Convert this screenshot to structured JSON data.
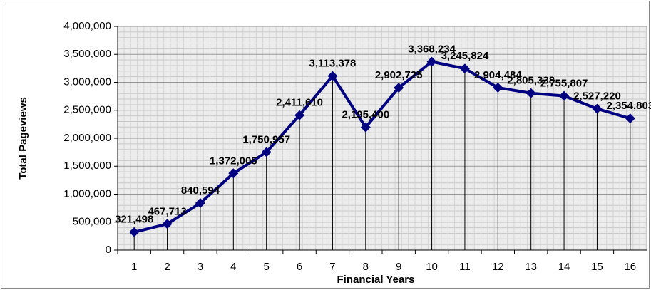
{
  "chart_data": {
    "type": "line",
    "x_label": "Financial Years",
    "y_label": "Total Pageviews",
    "categories": [
      "1",
      "2",
      "3",
      "4",
      "5",
      "6",
      "7",
      "8",
      "9",
      "10",
      "11",
      "12",
      "13",
      "14",
      "15",
      "16"
    ],
    "series": [
      {
        "name": "Total Pageviews",
        "color": "#000080",
        "values": [
          321498,
          467713,
          840594,
          1372005,
          1750957,
          2411610,
          3113378,
          2195400,
          2902725,
          3368234,
          3245824,
          2904484,
          2805338,
          2755807,
          2527220,
          2354803
        ],
        "value_labels": [
          "321,498",
          "467,713",
          "840,594",
          "1,372,005",
          "1,750,957",
          "2,411,610",
          "3,113,378",
          "2,195,400",
          "2,902,725",
          "3,368,234",
          "3,245,824",
          "2,904,484",
          "2,805,338",
          "2,755,807",
          "2,527,220",
          "2,354,803"
        ]
      }
    ],
    "ylim": [
      0,
      4000000
    ],
    "yticks": [
      0,
      {
        "value": 500000,
        "label": "500,000"
      },
      {
        "value": 1000000,
        "label": "1,000,000"
      },
      {
        "value": 1500000,
        "label": "1,500,000"
      },
      {
        "value": 2000000,
        "label": "2,000,000"
      },
      {
        "value": 2500000,
        "label": "2,500,000"
      },
      {
        "value": 3000000,
        "label": "3,000,000"
      },
      {
        "value": 3500000,
        "label": "3,500,000"
      },
      {
        "value": 4000000,
        "label": "4,000,000"
      }
    ],
    "grid": true,
    "drop_lines": true
  }
}
